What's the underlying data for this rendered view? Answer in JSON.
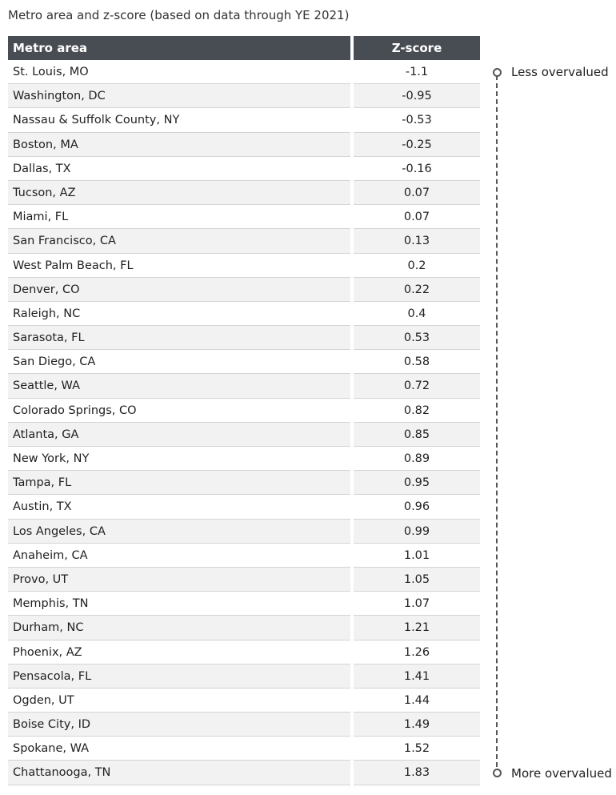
{
  "title": "Metro area and z-score (based on data through YE 2021)",
  "chart_data": {
    "type": "table",
    "title": "Metro area and z-score (based on data through YE 2021)",
    "columns": [
      "Metro area",
      "Z-score"
    ],
    "rows": [
      {
        "metro": "St. Louis, MO",
        "z": "-1.1"
      },
      {
        "metro": "Washington, DC",
        "z": "-0.95"
      },
      {
        "metro": "Nassau & Suffolk County, NY",
        "z": "-0.53"
      },
      {
        "metro": "Boston, MA",
        "z": "-0.25"
      },
      {
        "metro": "Dallas, TX",
        "z": "-0.16"
      },
      {
        "metro": "Tucson, AZ",
        "z": "0.07"
      },
      {
        "metro": "Miami, FL",
        "z": "0.07"
      },
      {
        "metro": "San Francisco, CA",
        "z": "0.13"
      },
      {
        "metro": "West Palm Beach, FL",
        "z": "0.2"
      },
      {
        "metro": "Denver, CO",
        "z": "0.22"
      },
      {
        "metro": "Raleigh, NC",
        "z": "0.4"
      },
      {
        "metro": "Sarasota, FL",
        "z": "0.53"
      },
      {
        "metro": "San Diego, CA",
        "z": "0.58"
      },
      {
        "metro": "Seattle, WA",
        "z": "0.72"
      },
      {
        "metro": "Colorado Springs, CO",
        "z": "0.82"
      },
      {
        "metro": "Atlanta, GA",
        "z": "0.85"
      },
      {
        "metro": "New York, NY",
        "z": "0.89"
      },
      {
        "metro": "Tampa, FL",
        "z": "0.95"
      },
      {
        "metro": "Austin, TX",
        "z": "0.96"
      },
      {
        "metro": "Los Angeles, CA",
        "z": "0.99"
      },
      {
        "metro": "Anaheim, CA",
        "z": "1.01"
      },
      {
        "metro": "Provo, UT",
        "z": "1.05"
      },
      {
        "metro": "Memphis, TN",
        "z": "1.07"
      },
      {
        "metro": "Durham, NC",
        "z": "1.21"
      },
      {
        "metro": "Phoenix, AZ",
        "z": "1.26"
      },
      {
        "metro": "Pensacola, FL",
        "z": "1.41"
      },
      {
        "metro": "Ogden, UT",
        "z": "1.44"
      },
      {
        "metro": "Boise City, ID",
        "z": "1.49"
      },
      {
        "metro": "Spokane, WA",
        "z": "1.52"
      },
      {
        "metro": "Chattanooga, TN",
        "z": "1.83"
      }
    ]
  },
  "scale": {
    "top_label": "Less overvalued",
    "bottom_label": "More overvalued",
    "line_color": "#555555"
  },
  "colors": {
    "header_bg": "#484d54",
    "row_alt_bg": "#f2f2f2"
  }
}
